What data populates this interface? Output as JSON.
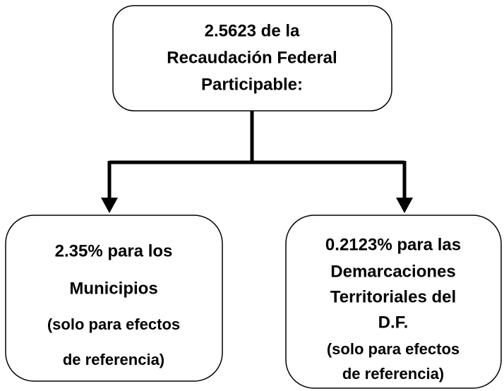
{
  "nodes": [
    {
      "lines": [
        "2.5623 de la",
        "Recaudación Federal",
        "Participable:"
      ]
    },
    {
      "lines": [
        "2.35% para los",
        "Municipios",
        "(solo para efectos",
        "de referencia)"
      ]
    },
    {
      "lines": [
        "0.2123% para las",
        "Demarcaciones",
        "Territoriales del",
        "D.F.",
        "(solo para efectos",
        "de referencia)"
      ]
    }
  ]
}
